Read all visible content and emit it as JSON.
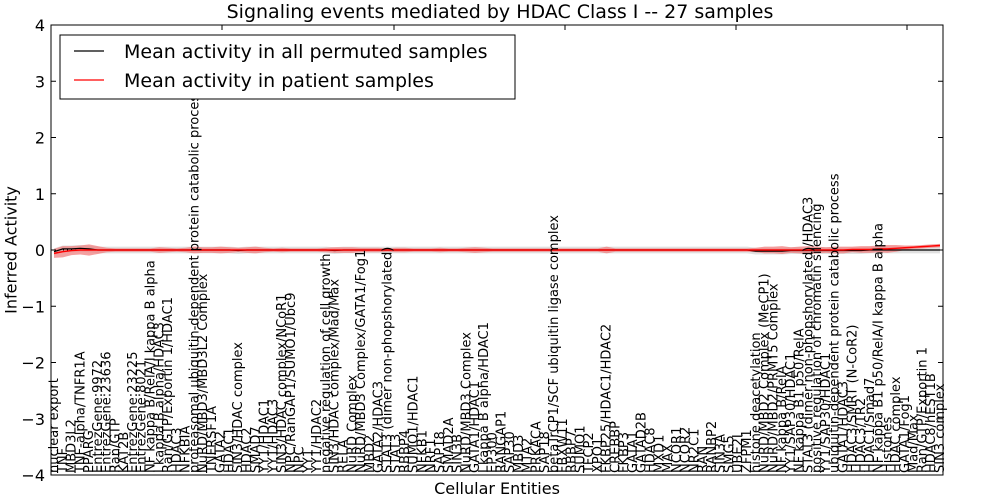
{
  "chart_data": {
    "type": "line",
    "title": "Signaling events mediated by HDAC Class I -- 27 samples",
    "xlabel": "Cellular Entities",
    "ylabel": "Inferred Activity",
    "ylim": [
      -4,
      4
    ],
    "yticks": [
      -4,
      -3,
      -2,
      -1,
      0,
      1,
      2,
      3,
      4
    ],
    "ytick_labels": [
      "−4",
      "−3",
      "−2",
      "−1",
      "0",
      "1",
      "2",
      "3",
      "4"
    ],
    "grid": false,
    "legend": {
      "position": "top-left",
      "entries": [
        {
          "label": "Mean activity in all permuted samples",
          "color": "#000000"
        },
        {
          "label": "Mean activity in patient samples",
          "color": "#ff0000"
        }
      ]
    },
    "colors": {
      "patient_line": "#ff0000",
      "patient_band": "#f08080",
      "permuted_line": "#000000",
      "permuted_band": "#d3d3d3"
    },
    "categories": [
      "nuclear export",
      "TNF",
      "MBD3L2",
      "TNF-alpha/TNFR1A",
      "PPARG",
      "EntrezGene:9972",
      "EntrezGene:23636",
      "Ran/GTP",
      "KAT2B",
      "EntrezGene:23225",
      "EntrezGene:8021",
      "NF kappa B/RelA/I kappa B alpha",
      "I kappa B alpha/HDAC3",
      "Ran/GTP/Exportin 1/HDAC1",
      "HDAC3",
      "NFKBIA",
      "proteasomal ubiquitin-dependent protein catabolic process",
      "NuRD/MBD3/MBD3L2 Complex",
      "TNFRSF1A",
      "GATA2",
      "HDAC1",
      "SIN3/HDAC complex",
      "HDAC2",
      "SMAD7",
      "YY1/HDAC1",
      "YY1/HDAC3",
      "SIN3/HDAC complex/NCoR1",
      "NPC/RanGAP1/SUMO1/Ubc9",
      "NPC",
      "YY1",
      "YY1/HDAC2",
      "negative regulation of cell growth",
      "SIN3/HDAC complex/Mad/Max",
      "RELA",
      "NuRD Complex",
      "NuRD/MBD3 Complex/GATA1/Fog1",
      "MBD2",
      "GATA2/HDAC3",
      "STAT3 (dimer non-phopshorylated)",
      "STAT3",
      "RBBP4",
      "SUMO1/HDAC1",
      "NFKB1",
      "NRF1",
      "SAP18",
      "SMAD2A",
      "SIN3B",
      "NuRD/MBD3 Complex",
      "GATA1/HDAC1",
      "I kappa B alpha/HDAC1",
      "EP300",
      "RANGAP1",
      "SAP30",
      "MBD3",
      "MTA2",
      "PRKACA",
      "SAP18",
      "betaTrCP1/SCF ubiquitin ligase complex",
      "FBXW11",
      "RBBP7",
      "SUMO1",
      "TFCP2",
      "XPO1",
      "FKBP25/HDAC1/HDAC2",
      "CREBBP",
      "FKBP3",
      "GATA1",
      "GATAD2B",
      "HDAC8",
      "MXD1",
      "MAX",
      "NCOR1",
      "NCOR2",
      "NR2C1",
      "RAN",
      "RANBP2",
      "SIN3A",
      "SMG5",
      "UBE2I",
      "ZFPM1",
      "histone deacetylation",
      "NuRD/MBD2 Complex (MeCP1)",
      "NuRD/MBD2/PRMT5 Complex",
      "NF kappa B/RelA",
      "YY1/SAP30/HDAC1",
      "NF kappa B1 p50/RelA",
      "STAT3 (dimer non-phopshorylated)/HDAC3",
      "positive regulation of chromatin silencing",
      "YY1/SAP30/HDAC1",
      "ubiquitin-dependent protein catabolic process",
      "GATA1/HDAC3",
      "HDAC3/SMRT (N-CoR2)",
      "HDAC3/TR2",
      "HDAC1/Smad7",
      "NF kappa B1 p50/RelA/I kappa B alpha",
      "Histones",
      "HDAC complex",
      "GATA1/Fog1",
      "Mad/Max",
      "Ran/GTP/Exportin 1",
      "HDAC8/hEST1B",
      "SIN3 complex"
    ],
    "series": [
      {
        "name": "Mean activity in patient samples",
        "values_note": "mean inferred activity per entity (approx.)",
        "values": [
          -0.06,
          -0.03,
          -0.01,
          0.0,
          0.0,
          0.0,
          0.0,
          0.0,
          0.0,
          0.0,
          0.0,
          0.0,
          0.0,
          0.0,
          0.0,
          0.0,
          0.0,
          0.0,
          0.0,
          0.0,
          0.0,
          0.0,
          0.0,
          0.0,
          0.0,
          0.0,
          0.0,
          0.0,
          0.0,
          0.0,
          0.0,
          0.0,
          0.0,
          0.0,
          0.0,
          0.0,
          0.0,
          0.0,
          0.0,
          0.0,
          0.0,
          0.0,
          0.0,
          0.0,
          0.0,
          0.0,
          0.0,
          0.0,
          0.0,
          0.0,
          0.0,
          0.0,
          0.0,
          0.0,
          0.0,
          0.0,
          0.0,
          0.0,
          0.0,
          0.0,
          0.0,
          0.0,
          0.0,
          0.0,
          0.0,
          0.0,
          0.0,
          0.0,
          0.0,
          0.0,
          0.0,
          0.0,
          0.0,
          0.0,
          0.0,
          0.0,
          0.0,
          0.0,
          0.0,
          0.0,
          0.0,
          0.0,
          0.0,
          0.0,
          0.0,
          0.0,
          0.0,
          0.0,
          0.0,
          0.0,
          0.0,
          0.01,
          0.01,
          0.01,
          0.02,
          0.02,
          0.03,
          0.04,
          0.05,
          0.06,
          0.07,
          0.08
        ],
        "band_halfwidth": [
          0.08,
          0.1,
          0.08,
          0.08,
          0.1,
          0.07,
          0.04,
          0.03,
          0.03,
          0.03,
          0.03,
          0.03,
          0.05,
          0.04,
          0.03,
          0.04,
          0.06,
          0.05,
          0.05,
          0.06,
          0.05,
          0.04,
          0.05,
          0.06,
          0.04,
          0.03,
          0.04,
          0.03,
          0.03,
          0.03,
          0.03,
          0.04,
          0.05,
          0.05,
          0.05,
          0.04,
          0.04,
          0.04,
          0.03,
          0.04,
          0.04,
          0.03,
          0.03,
          0.03,
          0.04,
          0.03,
          0.03,
          0.04,
          0.05,
          0.04,
          0.03,
          0.03,
          0.03,
          0.03,
          0.03,
          0.03,
          0.03,
          0.03,
          0.03,
          0.03,
          0.03,
          0.03,
          0.03,
          0.06,
          0.03,
          0.03,
          0.03,
          0.03,
          0.03,
          0.03,
          0.03,
          0.03,
          0.03,
          0.03,
          0.03,
          0.03,
          0.03,
          0.03,
          0.03,
          0.03,
          0.04,
          0.06,
          0.06,
          0.07,
          0.05,
          0.06,
          0.07,
          0.06,
          0.05,
          0.06,
          0.06,
          0.05,
          0.06,
          0.06,
          0.06,
          0.07,
          0.06,
          0.04,
          0.03,
          0.03,
          0.03,
          0.03
        ]
      },
      {
        "name": "Mean activity in all permuted samples",
        "values": [
          -0.03,
          0.02,
          0.02,
          0.03,
          0.02,
          0.0,
          0.0,
          0.0,
          0.0,
          0.0,
          0.0,
          0.0,
          0.0,
          0.0,
          0.0,
          0.0,
          0.0,
          0.0,
          0.0,
          0.0,
          0.0,
          -0.01,
          0.0,
          0.0,
          0.0,
          0.0,
          0.0,
          0.0,
          0.0,
          0.0,
          0.0,
          0.0,
          -0.01,
          0.0,
          0.0,
          0.0,
          0.0,
          0.0,
          0.0,
          0.0,
          0.0,
          0.0,
          0.0,
          0.0,
          0.0,
          0.0,
          0.0,
          0.0,
          0.0,
          0.0,
          0.0,
          0.0,
          0.0,
          0.0,
          0.0,
          0.0,
          0.0,
          0.0,
          0.0,
          0.0,
          0.0,
          0.0,
          0.0,
          0.0,
          0.0,
          0.0,
          0.0,
          0.0,
          0.0,
          0.0,
          0.0,
          0.0,
          0.0,
          0.0,
          0.0,
          0.0,
          0.0,
          0.0,
          0.0,
          0.0,
          -0.02,
          -0.02,
          -0.02,
          -0.02,
          -0.01,
          -0.01,
          -0.01,
          -0.01,
          -0.01,
          -0.01,
          -0.01,
          -0.01,
          -0.01,
          0.0,
          0.0,
          0.0,
          0.0,
          0.0,
          0.0,
          0.0,
          0.0,
          0.0
        ],
        "band_halfwidth": 0.06
      }
    ]
  }
}
